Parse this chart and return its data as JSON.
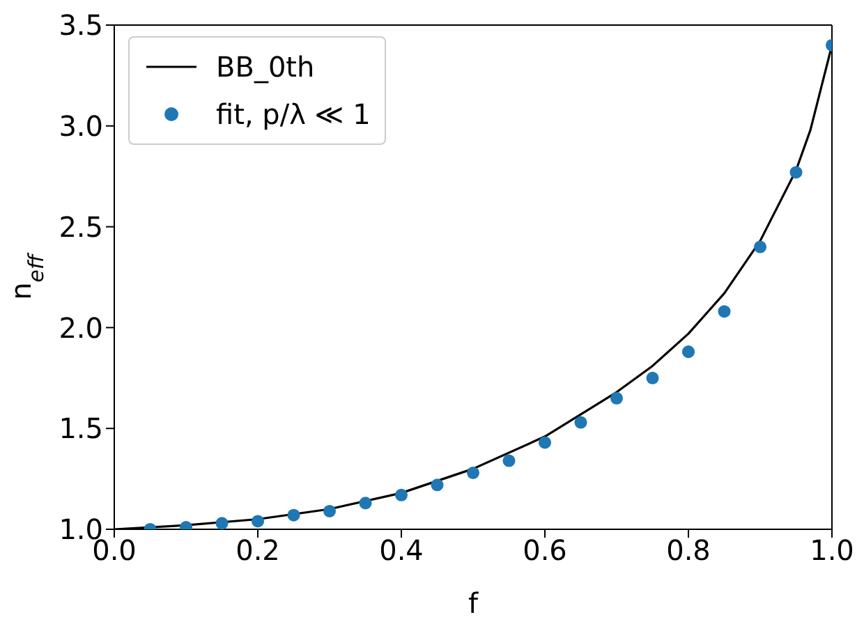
{
  "chart_data": {
    "type": "line",
    "xlabel": "f",
    "ylabel": "n$_{eff}$",
    "xlim": [
      0,
      1
    ],
    "ylim": [
      1,
      3.5
    ],
    "xticks": [
      {
        "value": 0,
        "label": "0.0"
      },
      0.2,
      0.4,
      0.6,
      0.8,
      {
        "value": 1,
        "label": "1.0"
      }
    ],
    "yticks": [
      {
        "value": 1,
        "label": "1.0"
      },
      1.5,
      {
        "value": 2,
        "label": "2.0"
      },
      2.5,
      {
        "value": 3,
        "label": "3.0"
      },
      3.5
    ],
    "grid": false,
    "legend": "top left",
    "series": [
      {
        "name": "BB_0th",
        "color": "#000000",
        "marker": "none",
        "x": [
          0,
          0.1,
          0.2,
          0.3,
          0.4,
          0.5,
          0.6,
          0.7,
          0.75,
          0.8,
          0.85,
          0.9,
          0.95,
          0.97,
          1.0
        ],
        "values": [
          1.0,
          1.02,
          1.05,
          1.1,
          1.18,
          1.3,
          1.46,
          1.68,
          1.81,
          1.97,
          2.17,
          2.43,
          2.78,
          2.98,
          3.4
        ]
      },
      {
        "name": "fit, p/λ ≪ 1",
        "type": "scatter",
        "color": "#1f77b4",
        "marker": "circle",
        "x": [
          0.05,
          0.1,
          0.15,
          0.2,
          0.25,
          0.3,
          0.35,
          0.4,
          0.45,
          0.5,
          0.55,
          0.6,
          0.65,
          0.7,
          0.75,
          0.8,
          0.85,
          0.9,
          0.95,
          1.0
        ],
        "values": [
          1.0,
          1.01,
          1.03,
          1.04,
          1.07,
          1.09,
          1.13,
          1.17,
          1.22,
          1.28,
          1.34,
          1.43,
          1.53,
          1.65,
          1.75,
          1.88,
          2.08,
          2.4,
          2.77,
          3.4
        ]
      }
    ]
  }
}
